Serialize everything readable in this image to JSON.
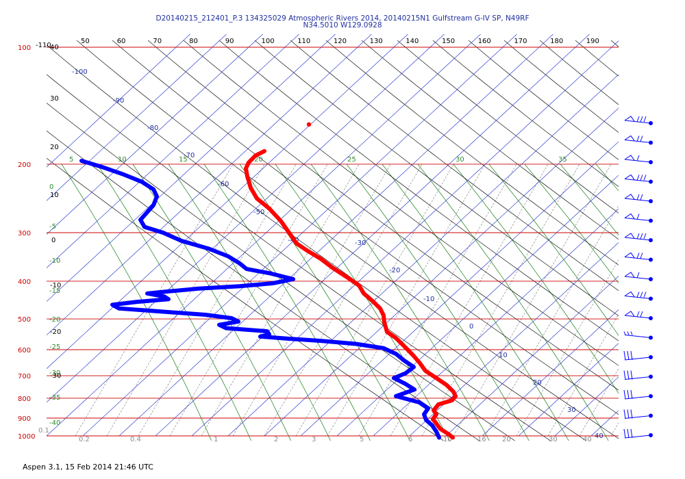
{
  "header": {
    "line1": "D20140215_212401_P.3 134325029 Atmospheric Rivers 2014, 20140215N1 Gulfstream G-IV SP, N49RF",
    "line2": "N34.5010 W129.0928"
  },
  "footer": {
    "text": "Aspen 3.1, 15 Feb 2014  21:46 UTC"
  },
  "chart_data": {
    "type": "line",
    "subtype": "skew-T log-P thermodynamic diagram",
    "pressure_levels_left": [
      "100",
      "200",
      "300",
      "400",
      "500",
      "600",
      "700",
      "800",
      "900",
      "1000"
    ],
    "pressure_levels": [
      100,
      200,
      300,
      400,
      500,
      600,
      700,
      800,
      900,
      1000
    ],
    "ylim": [
      1000,
      100
    ],
    "log_scale_y": true,
    "top_axis_ticks": [
      "50",
      "60",
      "70",
      "80",
      "90",
      "100",
      "110",
      "120",
      "130",
      "140",
      "150",
      "160",
      "170",
      "180",
      "190"
    ],
    "dry_adiabat_labels": [
      "-100",
      "-90",
      "-80",
      "-70",
      "-60",
      "-50",
      "-40",
      "-30",
      "-20",
      "-10",
      "0",
      "10",
      "20",
      "30",
      "40"
    ],
    "left_edge_labels": [
      "-110",
      "40",
      "30",
      "20",
      "10",
      "0",
      "-10",
      "-20",
      "-30"
    ],
    "moist_adiabat_labels": [
      "5",
      "10",
      "15",
      "20",
      "25",
      "30",
      "35"
    ],
    "moist_left_labels": [
      "0",
      "-5",
      "-10",
      "-15",
      "-20",
      "-25",
      "-30",
      "-35",
      "-40"
    ],
    "mixing_ratio_labels": [
      "0.1",
      "0.2",
      "0.4",
      "1",
      "2",
      "3",
      "5",
      "6",
      "10",
      "16",
      "20",
      "30",
      "40"
    ],
    "series": [
      {
        "key": "temperature",
        "color": "#ff0000",
        "style": "thick dotted line",
        "points": [
          {
            "p": 185,
            "x": 386
          },
          {
            "p": 190,
            "x": 373
          },
          {
            "p": 198,
            "x": 363
          },
          {
            "p": 205,
            "x": 359
          },
          {
            "p": 215,
            "x": 361
          },
          {
            "p": 230,
            "x": 366
          },
          {
            "p": 245,
            "x": 375
          },
          {
            "p": 260,
            "x": 393
          },
          {
            "p": 280,
            "x": 410
          },
          {
            "p": 300,
            "x": 422
          },
          {
            "p": 320,
            "x": 433
          },
          {
            "p": 335,
            "x": 450
          },
          {
            "p": 350,
            "x": 468
          },
          {
            "p": 370,
            "x": 486
          },
          {
            "p": 390,
            "x": 506
          },
          {
            "p": 410,
            "x": 524
          },
          {
            "p": 430,
            "x": 531
          },
          {
            "p": 450,
            "x": 544
          },
          {
            "p": 470,
            "x": 555
          },
          {
            "p": 490,
            "x": 560
          },
          {
            "p": 510,
            "x": 561
          },
          {
            "p": 540,
            "x": 565
          },
          {
            "p": 560,
            "x": 578
          },
          {
            "p": 590,
            "x": 591
          },
          {
            "p": 620,
            "x": 603
          },
          {
            "p": 650,
            "x": 613
          },
          {
            "p": 680,
            "x": 621
          },
          {
            "p": 710,
            "x": 637
          },
          {
            "p": 740,
            "x": 652
          },
          {
            "p": 770,
            "x": 662
          },
          {
            "p": 790,
            "x": 665
          },
          {
            "p": 810,
            "x": 660
          },
          {
            "p": 830,
            "x": 640
          },
          {
            "p": 860,
            "x": 633
          },
          {
            "p": 880,
            "x": 637
          },
          {
            "p": 905,
            "x": 632
          },
          {
            "p": 930,
            "x": 637
          },
          {
            "p": 960,
            "x": 643
          },
          {
            "p": 990,
            "x": 655
          },
          {
            "p": 1010,
            "x": 661
          }
        ]
      },
      {
        "key": "dewpoint",
        "color": "#0000ff",
        "style": "thick dotted line",
        "points": [
          {
            "p": 196,
            "x": 119
          },
          {
            "p": 203,
            "x": 148
          },
          {
            "p": 212,
            "x": 179
          },
          {
            "p": 222,
            "x": 207
          },
          {
            "p": 232,
            "x": 224
          },
          {
            "p": 242,
            "x": 229
          },
          {
            "p": 255,
            "x": 224
          },
          {
            "p": 268,
            "x": 213
          },
          {
            "p": 278,
            "x": 205
          },
          {
            "p": 290,
            "x": 211
          },
          {
            "p": 300,
            "x": 238
          },
          {
            "p": 315,
            "x": 265
          },
          {
            "p": 330,
            "x": 305
          },
          {
            "p": 345,
            "x": 333
          },
          {
            "p": 360,
            "x": 350
          },
          {
            "p": 372,
            "x": 360
          },
          {
            "p": 382,
            "x": 395
          },
          {
            "p": 395,
            "x": 428
          },
          {
            "p": 405,
            "x": 398
          },
          {
            "p": 412,
            "x": 350
          },
          {
            "p": 418,
            "x": 290
          },
          {
            "p": 425,
            "x": 245
          },
          {
            "p": 430,
            "x": 215
          },
          {
            "p": 438,
            "x": 240
          },
          {
            "p": 445,
            "x": 246
          },
          {
            "p": 452,
            "x": 200
          },
          {
            "p": 460,
            "x": 164
          },
          {
            "p": 470,
            "x": 174
          },
          {
            "p": 478,
            "x": 230
          },
          {
            "p": 488,
            "x": 300
          },
          {
            "p": 498,
            "x": 338
          },
          {
            "p": 508,
            "x": 348
          },
          {
            "p": 518,
            "x": 320
          },
          {
            "p": 528,
            "x": 330
          },
          {
            "p": 538,
            "x": 390
          },
          {
            "p": 548,
            "x": 393
          },
          {
            "p": 555,
            "x": 380
          },
          {
            "p": 562,
            "x": 420
          },
          {
            "p": 570,
            "x": 470
          },
          {
            "p": 580,
            "x": 520
          },
          {
            "p": 595,
            "x": 560
          },
          {
            "p": 615,
            "x": 578
          },
          {
            "p": 640,
            "x": 590
          },
          {
            "p": 665,
            "x": 604
          },
          {
            "p": 690,
            "x": 592
          },
          {
            "p": 710,
            "x": 575
          },
          {
            "p": 735,
            "x": 592
          },
          {
            "p": 760,
            "x": 605
          },
          {
            "p": 790,
            "x": 578
          },
          {
            "p": 820,
            "x": 612
          },
          {
            "p": 850,
            "x": 625
          },
          {
            "p": 880,
            "x": 619
          },
          {
            "p": 910,
            "x": 622
          },
          {
            "p": 940,
            "x": 631
          },
          {
            "p": 975,
            "x": 637
          },
          {
            "p": 1010,
            "x": 641
          }
        ]
      }
    ],
    "isolated_point": {
      "p": 158,
      "x": 451,
      "color": "#ff0000"
    },
    "wind_barb_count": 17,
    "grid": true
  }
}
